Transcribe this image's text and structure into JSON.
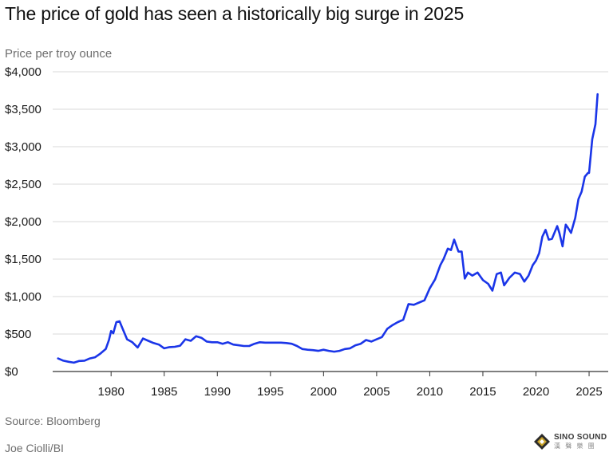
{
  "header": {
    "title": "The price of gold has seen a historically big surge in 2025",
    "subtitle": "Price per troy ounce"
  },
  "footer": {
    "source": "Source: Bloomberg",
    "credit": "Joe Ciolli/BI"
  },
  "watermark": {
    "main": "SINO SOUND",
    "sub": "漢 聲 樂 團",
    "icon": "diamond-logo-icon"
  },
  "colors": {
    "line": "#1a35e8",
    "grid": "#d9d9d9",
    "axis": "#333333"
  },
  "chart_data": {
    "type": "line",
    "title": "The price of gold has seen a historically big surge in 2025",
    "ylabel": "Price per troy ounce",
    "xlabel": "",
    "xlim": [
      1974.5,
      2026.8
    ],
    "ylim": [
      0,
      4000
    ],
    "xticks": [
      1980,
      1985,
      1990,
      1995,
      2000,
      2005,
      2010,
      2015,
      2020,
      2025
    ],
    "xtick_labels": [
      "1980",
      "1985",
      "1990",
      "1995",
      "2000",
      "2005",
      "2010",
      "2015",
      "2020",
      "2025"
    ],
    "yticks": [
      0,
      500,
      1000,
      1500,
      2000,
      2500,
      3000,
      3500,
      4000
    ],
    "ytick_labels": [
      "$0",
      "$500",
      "$1,000",
      "$1,500",
      "$2,000",
      "$2,500",
      "$3,000",
      "$3,500",
      "$4,000"
    ],
    "grid": "horizontal",
    "series": [
      {
        "x": [
          1975.0,
          1975.5,
          1976.0,
          1976.5,
          1977.0,
          1977.5,
          1978.0,
          1978.5,
          1979.0,
          1979.5,
          1979.8,
          1980.0,
          1980.2,
          1980.5,
          1980.8,
          1981.0,
          1981.5,
          1982.0,
          1982.5,
          1983.0,
          1983.5,
          1984.0,
          1984.5,
          1985.0,
          1985.5,
          1986.0,
          1986.5,
          1987.0,
          1987.5,
          1988.0,
          1988.5,
          1989.0,
          1989.5,
          1990.0,
          1990.5,
          1991.0,
          1991.5,
          1992.0,
          1992.5,
          1993.0,
          1993.5,
          1994.0,
          1994.5,
          1995.0,
          1995.5,
          1996.0,
          1996.5,
          1997.0,
          1997.5,
          1998.0,
          1998.5,
          1999.0,
          1999.5,
          2000.0,
          2000.5,
          2001.0,
          2001.5,
          2002.0,
          2002.5,
          2003.0,
          2003.5,
          2004.0,
          2004.5,
          2005.0,
          2005.5,
          2006.0,
          2006.5,
          2007.0,
          2007.5,
          2008.0,
          2008.5,
          2009.0,
          2009.5,
          2010.0,
          2010.5,
          2011.0,
          2011.3,
          2011.7,
          2012.0,
          2012.3,
          2012.7,
          2013.0,
          2013.3,
          2013.6,
          2014.0,
          2014.5,
          2015.0,
          2015.5,
          2015.9,
          2016.3,
          2016.7,
          2017.0,
          2017.5,
          2018.0,
          2018.5,
          2018.9,
          2019.3,
          2019.7,
          2020.0,
          2020.3,
          2020.6,
          2020.9,
          2021.2,
          2021.5,
          2022.0,
          2022.2,
          2022.5,
          2022.8,
          2023.0,
          2023.3,
          2023.7,
          2024.0,
          2024.3,
          2024.6,
          2024.9,
          2025.0,
          2025.3,
          2025.6,
          2025.8
        ],
        "y": [
          175,
          145,
          130,
          118,
          140,
          145,
          175,
          190,
          240,
          300,
          420,
          540,
          510,
          660,
          670,
          600,
          430,
          390,
          320,
          440,
          410,
          380,
          360,
          310,
          325,
          330,
          345,
          430,
          410,
          470,
          450,
          400,
          390,
          390,
          370,
          390,
          360,
          350,
          340,
          340,
          370,
          390,
          385,
          385,
          385,
          385,
          380,
          370,
          340,
          300,
          290,
          285,
          275,
          290,
          275,
          265,
          275,
          300,
          310,
          350,
          370,
          420,
          400,
          430,
          460,
          570,
          620,
          660,
          690,
          900,
          890,
          920,
          950,
          1110,
          1230,
          1420,
          1500,
          1640,
          1620,
          1760,
          1600,
          1600,
          1240,
          1320,
          1280,
          1320,
          1220,
          1170,
          1080,
          1300,
          1320,
          1150,
          1250,
          1320,
          1300,
          1200,
          1280,
          1420,
          1480,
          1580,
          1800,
          1890,
          1760,
          1770,
          1940,
          1850,
          1670,
          1960,
          1920,
          1850,
          2050,
          2300,
          2400,
          2600,
          2650,
          2650,
          3100,
          3300,
          3700
        ]
      }
    ]
  }
}
